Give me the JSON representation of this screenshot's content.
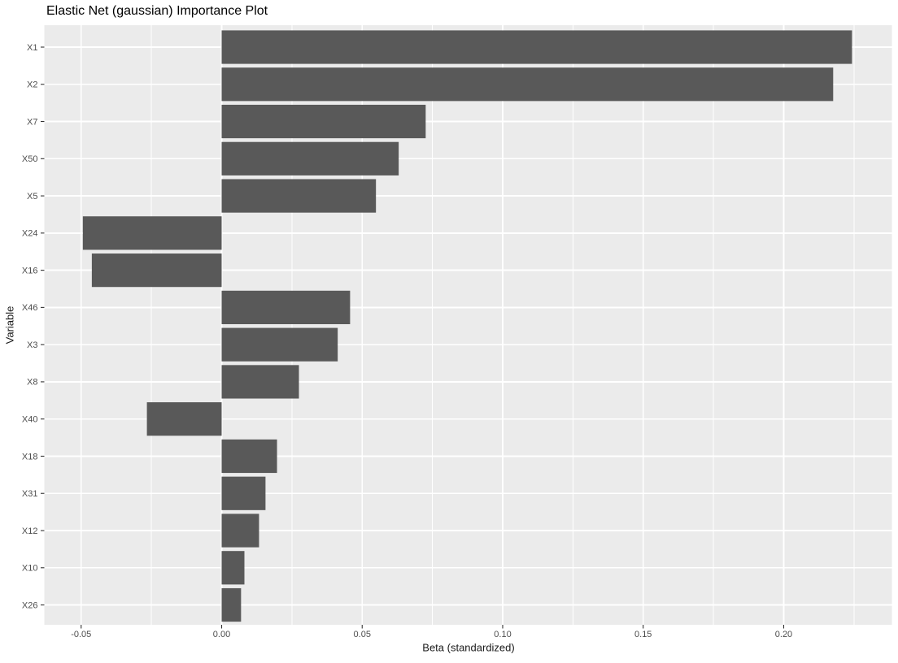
{
  "chart_data": {
    "type": "bar",
    "orientation": "horizontal",
    "title": "Elastic Net (gaussian) Importance Plot",
    "xlabel": "Beta (standardized)",
    "ylabel": "Variable",
    "categories": [
      "X1",
      "X2",
      "X7",
      "X50",
      "X5",
      "X24",
      "X16",
      "X46",
      "X3",
      "X8",
      "X40",
      "X18",
      "X31",
      "X12",
      "X10",
      "X26"
    ],
    "values": [
      0.2243,
      0.2176,
      0.0726,
      0.063,
      0.0549,
      -0.0494,
      -0.0462,
      0.0457,
      0.0413,
      0.0275,
      -0.0266,
      0.0197,
      0.0156,
      0.0133,
      0.0081,
      0.0069
    ],
    "xlim": [
      -0.0631,
      0.2385
    ],
    "x_major_ticks": [
      -0.05,
      0.0,
      0.05,
      0.1,
      0.15,
      0.2
    ],
    "x_tick_labels": [
      "-0.05",
      "0.00",
      "0.05",
      "0.10",
      "0.15",
      "0.20"
    ],
    "x_minor_ticks": [
      -0.025,
      0.025,
      0.075,
      0.125,
      0.175,
      0.225
    ],
    "grid": true,
    "legend_position": "none",
    "colors": {
      "bar": "#595959",
      "panel_background": "#EBEBEB",
      "gridline": "#FFFFFF",
      "axis_text": "#4D4D4D",
      "tick_mark": "#333333",
      "title_text": "#000000"
    }
  }
}
